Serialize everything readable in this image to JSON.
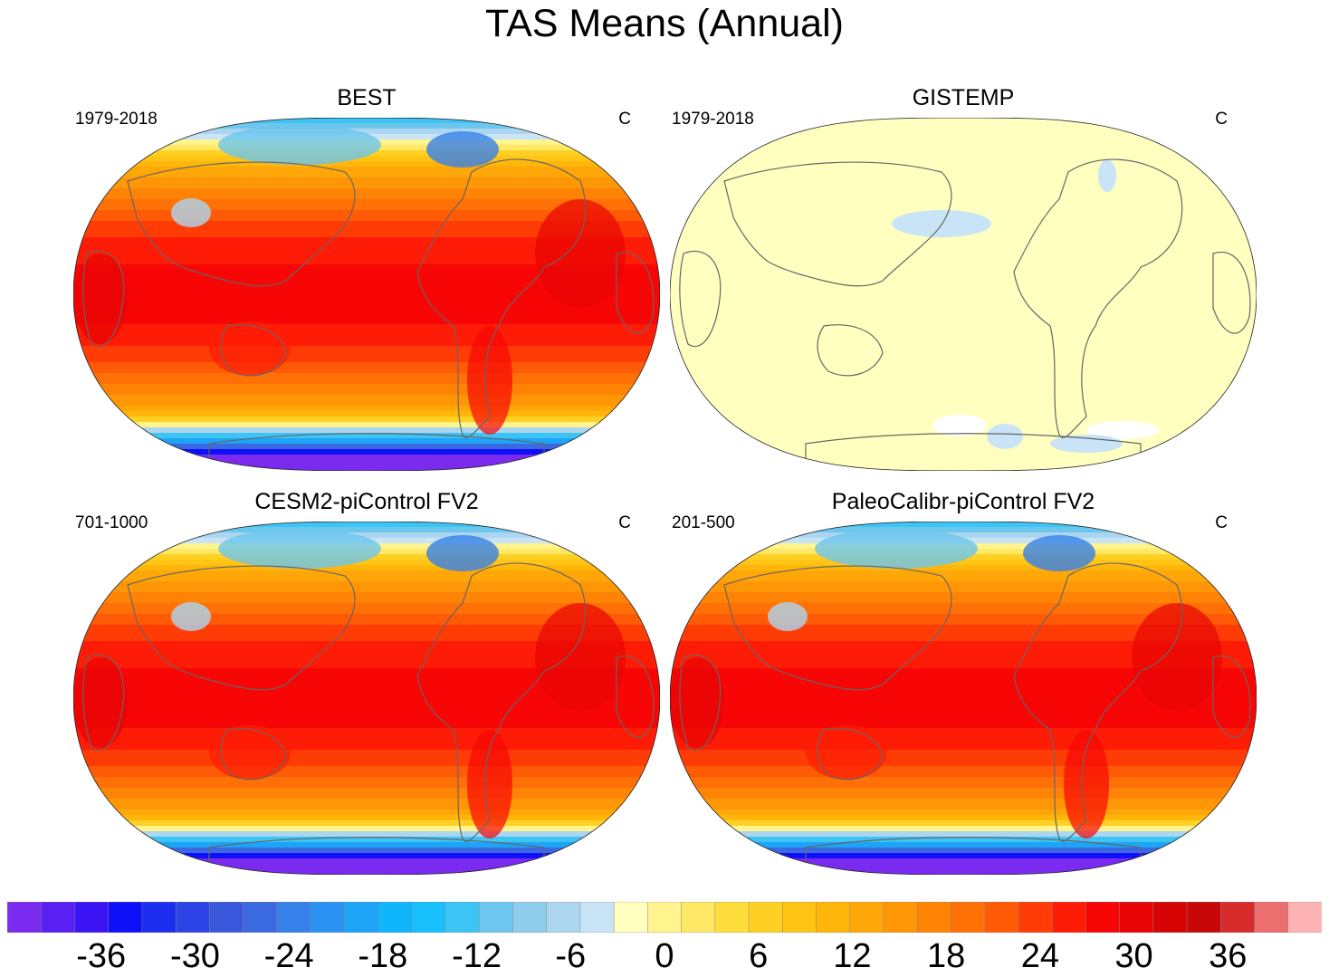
{
  "title": "TAS Means (Annual)",
  "chart_data": {
    "type": "heatmap",
    "projection": "Robinson (centered on Pacific)",
    "panels": [
      {
        "title": "BEST",
        "period": "1979-2018",
        "units": "C",
        "pattern": "model"
      },
      {
        "title": "GISTEMP",
        "period": "1979-2018",
        "units": "C",
        "pattern": "flat"
      },
      {
        "title": "CESM2-piControl FV2",
        "period": "701-1000",
        "units": "C",
        "pattern": "model"
      },
      {
        "title": "PaleoCalibr-piControl FV2",
        "period": "201-500",
        "units": "C",
        "pattern": "model"
      }
    ],
    "colorbar": {
      "colors": [
        "#7b2bf0",
        "#5a1ff2",
        "#3a14f5",
        "#1010f8",
        "#1c2ef0",
        "#2c44e6",
        "#3a58dc",
        "#3b6ae0",
        "#3680ea",
        "#2a92f2",
        "#1ea4f6",
        "#10b6fb",
        "#18c0fb",
        "#3cc4f5",
        "#6cc6ee",
        "#90ccec",
        "#acd6f0",
        "#c8e4f6",
        "#ffffc0",
        "#fff48e",
        "#ffe866",
        "#ffde3c",
        "#ffd024",
        "#ffc414",
        "#ffb60a",
        "#ffa608",
        "#ff9606",
        "#ff8406",
        "#ff7006",
        "#ff5a06",
        "#ff3c06",
        "#ff1c06",
        "#f80606",
        "#e80404",
        "#d60404",
        "#c80808",
        "#d82c2c",
        "#ec6e6e",
        "#ffb4b4"
      ],
      "tick_labels": [
        "-36",
        "-30",
        "-24",
        "-18",
        "-12",
        "-6",
        "0",
        "6",
        "12",
        "18",
        "24",
        "30",
        "36"
      ],
      "tick_values": [
        -36,
        -30,
        -24,
        -18,
        -12,
        -6,
        0,
        6,
        12,
        18,
        24,
        30,
        36
      ],
      "min": -42,
      "max": 42
    }
  }
}
